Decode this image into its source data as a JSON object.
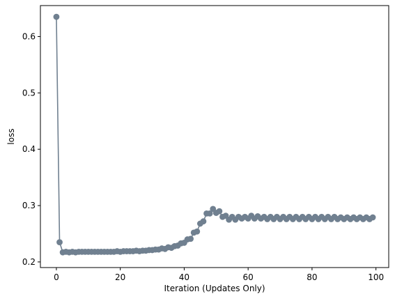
{
  "chart_data": {
    "type": "line",
    "title": "",
    "xlabel": "Iteration (Updates Only)",
    "ylabel": "loss",
    "xlim": [
      -5,
      104
    ],
    "ylim": [
      0.19,
      0.655
    ],
    "xticks": [
      0,
      20,
      40,
      60,
      80,
      100
    ],
    "yticks": [
      0.2,
      0.3,
      0.4,
      0.5,
      0.6
    ],
    "xtick_labels": [
      "0",
      "20",
      "40",
      "60",
      "80",
      "100"
    ],
    "ytick_labels": [
      "0.2",
      "0.3",
      "0.4",
      "0.5",
      "0.6"
    ],
    "grid": false,
    "legend": "none",
    "marker": "circle",
    "series": [
      {
        "color": "#708090",
        "x": [
          0,
          1,
          2,
          3,
          4,
          5,
          6,
          7,
          8,
          9,
          10,
          11,
          12,
          13,
          14,
          15,
          16,
          17,
          18,
          19,
          20,
          21,
          22,
          23,
          24,
          25,
          26,
          27,
          28,
          29,
          30,
          31,
          32,
          33,
          34,
          35,
          36,
          37,
          38,
          39,
          40,
          41,
          42,
          43,
          44,
          45,
          46,
          47,
          48,
          49,
          50,
          51,
          52,
          53,
          54,
          55,
          56,
          57,
          58,
          59,
          60,
          61,
          62,
          63,
          64,
          65,
          66,
          67,
          68,
          69,
          70,
          71,
          72,
          73,
          74,
          75,
          76,
          77,
          78,
          79,
          80,
          81,
          82,
          83,
          84,
          85,
          86,
          87,
          88,
          89,
          90,
          91,
          92,
          93,
          94,
          95,
          96,
          97,
          98,
          99
        ],
        "y": [
          0.635,
          0.235,
          0.217,
          0.218,
          0.217,
          0.218,
          0.217,
          0.218,
          0.218,
          0.218,
          0.218,
          0.218,
          0.218,
          0.218,
          0.218,
          0.218,
          0.218,
          0.218,
          0.218,
          0.219,
          0.218,
          0.219,
          0.219,
          0.219,
          0.219,
          0.22,
          0.219,
          0.22,
          0.22,
          0.221,
          0.221,
          0.222,
          0.222,
          0.224,
          0.223,
          0.226,
          0.225,
          0.228,
          0.229,
          0.233,
          0.234,
          0.24,
          0.241,
          0.252,
          0.254,
          0.268,
          0.272,
          0.286,
          0.286,
          0.294,
          0.287,
          0.29,
          0.28,
          0.282,
          0.275,
          0.28,
          0.275,
          0.28,
          0.277,
          0.28,
          0.277,
          0.282,
          0.277,
          0.281,
          0.277,
          0.28,
          0.276,
          0.28,
          0.276,
          0.28,
          0.276,
          0.28,
          0.276,
          0.28,
          0.276,
          0.28,
          0.276,
          0.28,
          0.276,
          0.28,
          0.276,
          0.28,
          0.276,
          0.28,
          0.276,
          0.28,
          0.276,
          0.28,
          0.276,
          0.279,
          0.276,
          0.279,
          0.276,
          0.279,
          0.276,
          0.279,
          0.276,
          0.279,
          0.276,
          0.279
        ]
      }
    ]
  }
}
